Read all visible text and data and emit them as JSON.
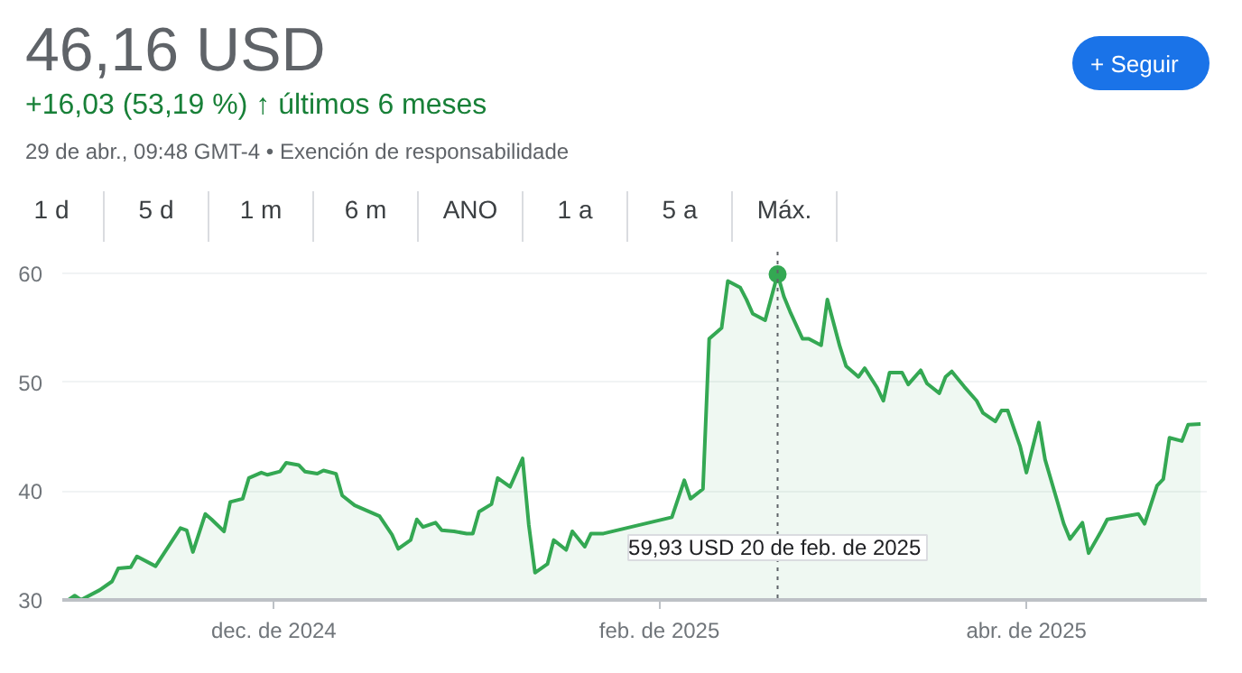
{
  "chart_data": {
    "type": "area",
    "title": "46,16 USD",
    "subtitle": "+16,03 (53,19 %) ↑ últimos 6 meses",
    "annotations": [
      "29 de abr., 09:48 GMT-4 • Exención de responsabilidade",
      "+ Seguir",
      "1 d",
      "5 d",
      "1 m",
      "6 m",
      "ANO",
      "1 a",
      "5 a",
      "Máx."
    ],
    "x": [
      "2024-10-29",
      "2024-10-30",
      "2024-10-31",
      "2024-11-03",
      "2024-11-05",
      "2024-11-06",
      "2024-11-08",
      "2024-11-09",
      "2024-11-12",
      "2024-11-16",
      "2024-11-17",
      "2024-11-18",
      "2024-11-20",
      "2024-11-21",
      "2024-11-23",
      "2024-11-24",
      "2024-11-26",
      "2024-11-27",
      "2024-11-29",
      "2024-11-30",
      "2024-12-02",
      "2024-12-03",
      "2024-12-05",
      "2024-12-06",
      "2024-12-08",
      "2024-12-09",
      "2024-12-11",
      "2024-12-12",
      "2024-12-14",
      "2024-12-16",
      "2024-12-18",
      "2024-12-20",
      "2024-12-21",
      "2024-12-23",
      "2024-12-24",
      "2024-12-25",
      "2024-12-27",
      "2024-12-28",
      "2024-12-30",
      "2025-01-01",
      "2025-01-02",
      "2025-01-03",
      "2025-01-05",
      "2025-01-06",
      "2025-01-08",
      "2025-01-10",
      "2025-01-11",
      "2025-01-12",
      "2025-01-14",
      "2025-01-15",
      "2025-01-17",
      "2025-01-18",
      "2025-01-20",
      "2025-01-21",
      "2025-01-23",
      "2025-02-03",
      "2025-02-05",
      "2025-02-06",
      "2025-02-08",
      "2025-02-09",
      "2025-02-11",
      "2025-02-12",
      "2025-02-14",
      "2025-02-15",
      "2025-02-16",
      "2025-02-18",
      "2025-02-20",
      "2025-02-21",
      "2025-02-22",
      "2025-02-24",
      "2025-02-25",
      "2025-02-27",
      "2025-02-28",
      "2025-03-02",
      "2025-03-03",
      "2025-03-05",
      "2025-03-06",
      "2025-03-08",
      "2025-03-09",
      "2025-03-10",
      "2025-03-12",
      "2025-03-13",
      "2025-03-15",
      "2025-03-16",
      "2025-03-18",
      "2025-03-19",
      "2025-03-20",
      "2025-03-22",
      "2025-03-24",
      "2025-03-25",
      "2025-03-27",
      "2025-03-28",
      "2025-03-29",
      "2025-03-31",
      "2025-04-01",
      "2025-04-03",
      "2025-04-04",
      "2025-04-06",
      "2025-04-07",
      "2025-04-08",
      "2025-04-10",
      "2025-04-11",
      "2025-04-13",
      "2025-04-14",
      "2025-04-19",
      "2025-04-20",
      "2025-04-22",
      "2025-04-23",
      "2025-04-24",
      "2025-04-26",
      "2025-04-27",
      "2025-04-29"
    ],
    "series": [
      {
        "color": "#34a853",
        "values": [
          30.0,
          30.4,
          30.0,
          30.9,
          31.7,
          32.9,
          33.0,
          34.0,
          33.1,
          36.6,
          36.4,
          34.4,
          37.9,
          37.4,
          36.3,
          39.0,
          39.3,
          41.2,
          41.7,
          41.5,
          41.8,
          42.6,
          42.4,
          41.8,
          41.6,
          41.9,
          41.6,
          39.6,
          38.7,
          38.2,
          37.7,
          36.0,
          34.7,
          35.5,
          37.4,
          36.7,
          37.1,
          36.4,
          36.3,
          36.1,
          36.1,
          38.1,
          38.8,
          41.2,
          40.4,
          43.0,
          36.9,
          32.5,
          33.3,
          35.5,
          34.6,
          36.3,
          34.9,
          36.1,
          36.1,
          37.6,
          41.0,
          39.3,
          40.2,
          54.0,
          55.0,
          59.3,
          58.7,
          57.6,
          56.3,
          55.7,
          59.93,
          57.9,
          56.5,
          54.0,
          54.0,
          53.4,
          57.6,
          53.3,
          51.5,
          50.5,
          51.3,
          49.5,
          48.3,
          50.9,
          50.9,
          49.8,
          51.1,
          49.9,
          49.0,
          50.5,
          51.0,
          49.6,
          48.3,
          47.2,
          46.4,
          47.4,
          47.4,
          44.1,
          41.7,
          46.3,
          42.9,
          39.0,
          37.0,
          35.6,
          37.1,
          34.3,
          36.3,
          37.4,
          37.9,
          37.0,
          40.5,
          41.1,
          44.9,
          44.6,
          46.1,
          46.16
        ]
      }
    ],
    "xlim": [
      "2024-10-28",
      "2025-04-30"
    ],
    "xticks": [
      {
        "value": "2024-12-01",
        "label": "dec. de 2024"
      },
      {
        "value": "2025-02-01",
        "label": "feb. de 2025"
      },
      {
        "value": "2025-04-01",
        "label": "abr. de 2025"
      }
    ],
    "ylim": [
      30,
      62
    ],
    "yticks": [
      30,
      40,
      50,
      60
    ],
    "grid": "y",
    "ref_lines": [
      {
        "axis": "x",
        "value": "2025-02-20",
        "label": "59,93 USD  20 de feb. de 2025",
        "color": "#5f6368",
        "line_style": "dotted"
      }
    ]
  }
}
